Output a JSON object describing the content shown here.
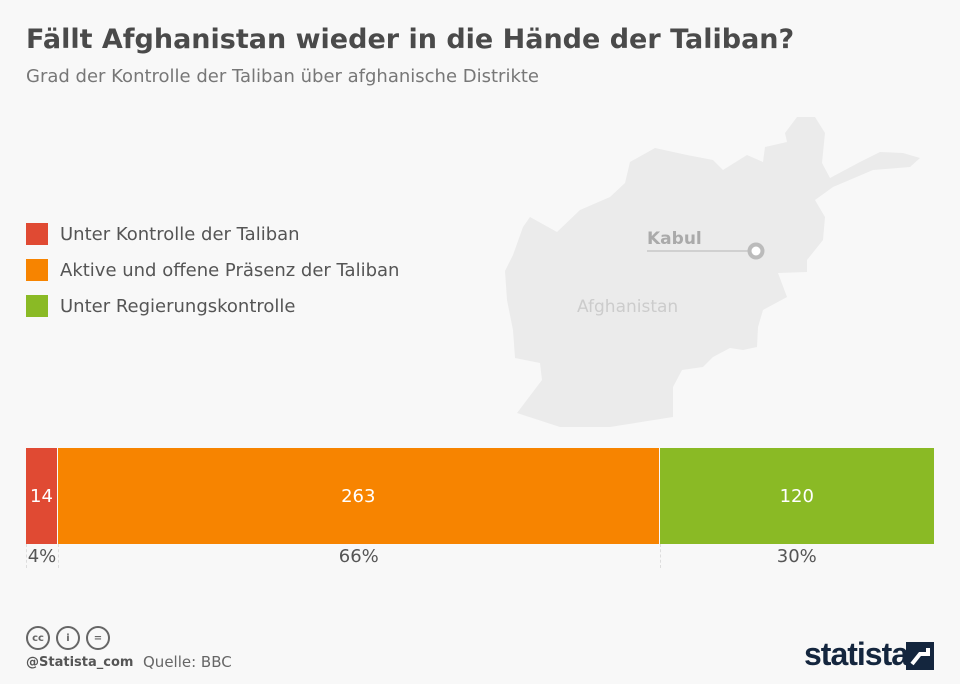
{
  "header": {
    "title": "Fällt Afghanistan wieder in die Hände der Taliban?",
    "subtitle": "Grad der Kontrolle der Taliban über afghanische Distrikte"
  },
  "map": {
    "country_label": "Afghanistan",
    "city_label": "Kabul"
  },
  "chart_data": {
    "type": "bar",
    "orientation": "horizontal-stacked",
    "title": "Fällt Afghanistan wieder in die Hände der Taliban?",
    "series": [
      {
        "name": "Unter Kontrolle der Taliban",
        "value": 14,
        "percent": "4%",
        "color": "#e04a33"
      },
      {
        "name": "Aktive und offene Präsenz der Taliban",
        "value": 263,
        "percent": "66%",
        "color": "#f78400"
      },
      {
        "name": "Unter Regierungskontrolle",
        "value": 120,
        "percent": "30%",
        "color": "#8aba25"
      }
    ],
    "legend_position": "left"
  },
  "footer": {
    "handle": "@Statista_com",
    "source": "Quelle: BBC",
    "brand": "statista",
    "cc_icons": [
      "cc",
      "i",
      "="
    ]
  }
}
